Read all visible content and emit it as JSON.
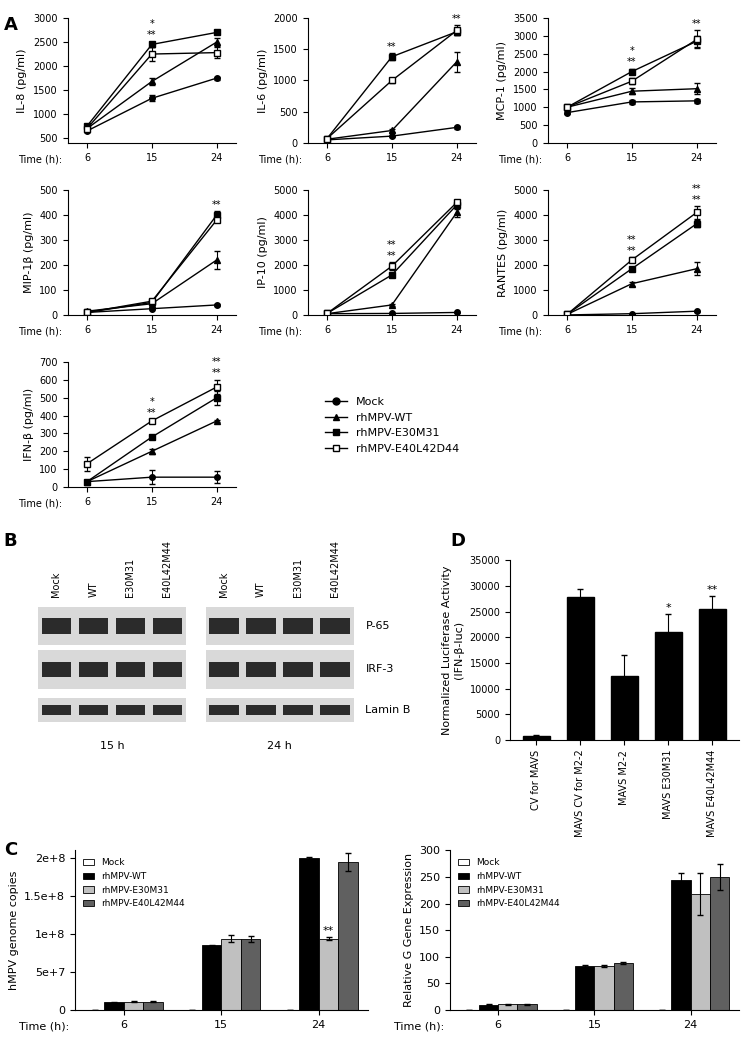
{
  "panel_labels": [
    "A",
    "B",
    "C",
    "D"
  ],
  "blot": {
    "lanes": [
      "Mock",
      "WT",
      "E30M31",
      "E40L42M44"
    ],
    "timepoints": [
      "15 h",
      "24 h"
    ],
    "rows": [
      "P-65",
      "IRF-3",
      "Lamin B"
    ]
  },
  "chart_data": [
    {
      "type": "line",
      "y_label": "IL-8 (pg/ml)",
      "x_label": "Time (h):",
      "categories": [
        "6",
        "15",
        "24"
      ],
      "ylim": [
        400,
        3000
      ],
      "yticks": [
        500,
        1000,
        1500,
        2000,
        2500,
        3000
      ],
      "series": [
        {
          "name": "Mock",
          "color": "#000000",
          "marker": "circle",
          "values": [
            650,
            1330,
            1750
          ],
          "errors": [
            30,
            60,
            30
          ]
        },
        {
          "name": "rhMPV-WT",
          "color": "#000000",
          "marker": "triangle",
          "values": [
            700,
            1680,
            2500
          ],
          "errors": [
            40,
            70,
            90
          ]
        },
        {
          "name": "rhMPV-E30M31",
          "color": "#000000",
          "marker": "square",
          "values": [
            750,
            2450,
            2700
          ],
          "errors": [
            40,
            60,
            40
          ]
        },
        {
          "name": "rhMPV-E40L42D44",
          "color": "#000000",
          "marker": "open_square",
          "values": [
            700,
            2250,
            2280
          ],
          "errors": [
            40,
            140,
            120
          ]
        }
      ],
      "annotations": [
        {
          "x": "15",
          "text": "**"
        },
        {
          "x": "15",
          "text": "*"
        }
      ]
    },
    {
      "type": "line",
      "y_label": "IL-6 (pg/ml)",
      "x_label": "Time (h):",
      "categories": [
        "6",
        "15",
        "24"
      ],
      "ylim": [
        0,
        2000
      ],
      "yticks": [
        0,
        500,
        1000,
        1500,
        2000
      ],
      "series": [
        {
          "name": "Mock",
          "color": "#000000",
          "marker": "circle",
          "values": [
            50,
            110,
            250
          ],
          "errors": [
            10,
            10,
            20
          ]
        },
        {
          "name": "rhMPV-WT",
          "color": "#000000",
          "marker": "triangle",
          "values": [
            60,
            200,
            1300
          ],
          "errors": [
            10,
            20,
            160
          ]
        },
        {
          "name": "rhMPV-E30M31",
          "color": "#000000",
          "marker": "square",
          "values": [
            70,
            1380,
            1780
          ],
          "errors": [
            10,
            60,
            60
          ]
        },
        {
          "name": "rhMPV-E40L42D44",
          "color": "#000000",
          "marker": "open_square",
          "values": [
            70,
            1000,
            1800
          ],
          "errors": [
            10,
            40,
            80
          ]
        }
      ],
      "annotations": [
        {
          "x": "15",
          "text": "**"
        },
        {
          "x": "24",
          "text": "**"
        }
      ]
    },
    {
      "type": "line",
      "y_label": "MCP-1 (pg/ml)",
      "x_label": "Time (h):",
      "categories": [
        "6",
        "15",
        "24"
      ],
      "ylim": [
        0,
        3500
      ],
      "yticks": [
        0,
        500,
        1000,
        1500,
        2000,
        2500,
        3000,
        3500
      ],
      "series": [
        {
          "name": "Mock",
          "color": "#000000",
          "marker": "circle",
          "values": [
            850,
            1150,
            1180
          ],
          "errors": [
            40,
            60,
            60
          ]
        },
        {
          "name": "rhMPV-WT",
          "color": "#000000",
          "marker": "triangle",
          "values": [
            1000,
            1450,
            1520
          ],
          "errors": [
            50,
            80,
            150
          ]
        },
        {
          "name": "rhMPV-E30M31",
          "color": "#000000",
          "marker": "square",
          "values": [
            1000,
            2000,
            2850
          ],
          "errors": [
            50,
            80,
            150
          ]
        },
        {
          "name": "rhMPV-E40L42D44",
          "color": "#000000",
          "marker": "open_square",
          "values": [
            1000,
            1730,
            2900
          ],
          "errors": [
            60,
            80,
            250
          ]
        }
      ],
      "annotations": [
        {
          "x": "15",
          "text": "**"
        },
        {
          "x": "15",
          "text": "*"
        },
        {
          "x": "24",
          "text": "**"
        }
      ]
    },
    {
      "type": "line",
      "y_label": "MIP-1β (pg/ml)",
      "x_label": "Time (h):",
      "categories": [
        "6",
        "15",
        "24"
      ],
      "ylim": [
        0,
        500
      ],
      "yticks": [
        0,
        100,
        200,
        300,
        400,
        500
      ],
      "series": [
        {
          "name": "Mock",
          "color": "#000000",
          "marker": "circle",
          "values": [
            10,
            25,
            40
          ],
          "errors": [
            3,
            3,
            5
          ]
        },
        {
          "name": "rhMPV-WT",
          "color": "#000000",
          "marker": "triangle",
          "values": [
            15,
            45,
            220
          ],
          "errors": [
            5,
            5,
            35
          ]
        },
        {
          "name": "rhMPV-E30M31",
          "color": "#000000",
          "marker": "square",
          "values": [
            10,
            50,
            400
          ],
          "errors": [
            3,
            5,
            15
          ]
        },
        {
          "name": "rhMPV-E40L42D44",
          "color": "#000000",
          "marker": "open_square",
          "values": [
            10,
            55,
            380
          ],
          "errors": [
            3,
            5,
            10
          ]
        }
      ],
      "annotations": [
        {
          "x": "24",
          "text": "**"
        }
      ]
    },
    {
      "type": "line",
      "y_label": "IP-10 (pg/ml)",
      "x_label": "Time (h):",
      "categories": [
        "6",
        "15",
        "24"
      ],
      "ylim": [
        0,
        5000
      ],
      "yticks": [
        0,
        1000,
        2000,
        3000,
        4000,
        5000
      ],
      "series": [
        {
          "name": "Mock",
          "color": "#000000",
          "marker": "circle",
          "values": [
            50,
            60,
            100
          ],
          "errors": [
            10,
            10,
            15
          ]
        },
        {
          "name": "rhMPV-WT",
          "color": "#000000",
          "marker": "triangle",
          "values": [
            50,
            400,
            4100
          ],
          "errors": [
            10,
            40,
            200
          ]
        },
        {
          "name": "rhMPV-E30M31",
          "color": "#000000",
          "marker": "square",
          "values": [
            60,
            1600,
            4400
          ],
          "errors": [
            10,
            80,
            150
          ]
        },
        {
          "name": "rhMPV-E40L42D44",
          "color": "#000000",
          "marker": "open_square",
          "values": [
            60,
            1950,
            4500
          ],
          "errors": [
            10,
            150,
            100
          ]
        }
      ],
      "annotations": [
        {
          "x": "15",
          "text": "**"
        },
        {
          "x": "15",
          "text": "**"
        }
      ]
    },
    {
      "type": "line",
      "y_label": "RANTES (pg/ml)",
      "x_label": "Time (h):",
      "categories": [
        "6",
        "15",
        "24"
      ],
      "ylim": [
        0,
        5000
      ],
      "yticks": [
        0,
        1000,
        2000,
        3000,
        4000,
        5000
      ],
      "series": [
        {
          "name": "Mock",
          "color": "#000000",
          "marker": "circle",
          "values": [
            0,
            50,
            150
          ],
          "errors": [
            5,
            5,
            20
          ]
        },
        {
          "name": "rhMPV-WT",
          "color": "#000000",
          "marker": "triangle",
          "values": [
            20,
            1250,
            1850
          ],
          "errors": [
            5,
            80,
            250
          ]
        },
        {
          "name": "rhMPV-E30M31",
          "color": "#000000",
          "marker": "square",
          "values": [
            20,
            1850,
            3650
          ],
          "errors": [
            5,
            80,
            150
          ]
        },
        {
          "name": "rhMPV-E40L42D44",
          "color": "#000000",
          "marker": "open_square",
          "values": [
            20,
            2200,
            4100
          ],
          "errors": [
            5,
            100,
            250
          ]
        }
      ],
      "annotations": [
        {
          "x": "15",
          "text": "**"
        },
        {
          "x": "15",
          "text": "**"
        },
        {
          "x": "24",
          "text": "**"
        },
        {
          "x": "24",
          "text": "**"
        }
      ]
    },
    {
      "type": "line",
      "y_label": "IFN-β (pg/ml)",
      "x_label": "Time (h):",
      "categories": [
        "6",
        "15",
        "24"
      ],
      "ylim": [
        0,
        700
      ],
      "yticks": [
        0,
        100,
        200,
        300,
        400,
        500,
        600,
        700
      ],
      "series": [
        {
          "name": "Mock",
          "color": "#000000",
          "marker": "circle",
          "values": [
            30,
            55,
            55
          ],
          "errors": [
            10,
            40,
            35
          ]
        },
        {
          "name": "rhMPV-WT",
          "color": "#000000",
          "marker": "triangle",
          "values": [
            30,
            200,
            370
          ],
          "errors": [
            10,
            15,
            5
          ]
        },
        {
          "name": "rhMPV-E30M31",
          "color": "#000000",
          "marker": "square",
          "values": [
            30,
            280,
            500
          ],
          "errors": [
            10,
            10,
            40
          ]
        },
        {
          "name": "rhMPV-E40L42D44",
          "color": "#000000",
          "marker": "open_square",
          "values": [
            130,
            370,
            560
          ],
          "errors": [
            40,
            10,
            40
          ]
        }
      ],
      "annotations": [
        {
          "x": "15",
          "text": "**"
        },
        {
          "x": "15",
          "text": "*"
        },
        {
          "x": "24",
          "text": "**"
        },
        {
          "x": "24",
          "text": "**"
        }
      ]
    },
    {
      "type": "bar",
      "y_label": "hMPV genome copies",
      "x_label": "Time (h):",
      "legend": "upper left",
      "categories": [
        "6",
        "15",
        "24"
      ],
      "ylim": [
        0,
        210000000
      ],
      "yticks": [
        0,
        {
          "value": 50000000,
          "label": "5e+7"
        },
        {
          "value": 100000000,
          "label": "1e+8"
        },
        {
          "value": 150000000,
          "label": "1.5e+8"
        },
        {
          "value": 200000000,
          "label": "2e+8"
        }
      ],
      "series": [
        {
          "name": "Mock",
          "color": "#ffffff",
          "values": [
            0,
            0,
            0
          ],
          "errors": [
            0,
            0,
            0
          ]
        },
        {
          "name": "rhMPV-WT",
          "color": "#000000",
          "values": [
            10000000,
            85000000,
            200000000
          ],
          "errors": [
            500000,
            1000000,
            1500000
          ]
        },
        {
          "name": "rhMPV-E30M31",
          "color": "#c0c0c0",
          "values": [
            11000000,
            94000000,
            94000000
          ],
          "errors": [
            500000,
            5000000,
            1500000
          ]
        },
        {
          "name": "rhMPV-E40L42M44",
          "color": "#606060",
          "values": [
            11000000,
            93000000,
            195000000
          ],
          "errors": [
            500000,
            4000000,
            12000000
          ]
        }
      ],
      "annotations": [
        {
          "x": "24",
          "text": "**",
          "series": "rhMPV-E30M31"
        }
      ]
    },
    {
      "type": "bar",
      "y_label": "Relative G Gene Expression",
      "x_label": "Time (h):",
      "legend": "upper left",
      "categories": [
        "6",
        "15",
        "24"
      ],
      "ylim": [
        0,
        300
      ],
      "yticks": [
        0,
        50,
        100,
        150,
        200,
        250,
        300
      ],
      "series": [
        {
          "name": "Mock",
          "color": "#ffffff",
          "values": [
            0,
            0,
            0
          ],
          "errors": [
            0,
            0,
            0
          ]
        },
        {
          "name": "rhMPV-WT",
          "color": "#000000",
          "values": [
            10,
            82,
            245
          ],
          "errors": [
            1,
            2,
            12
          ]
        },
        {
          "name": "rhMPV-E30M31",
          "color": "#c0c0c0",
          "values": [
            11,
            83,
            218
          ],
          "errors": [
            1,
            2,
            40
          ]
        },
        {
          "name": "rhMPV-E40L42M44",
          "color": "#606060",
          "values": [
            11,
            89,
            250
          ],
          "errors": [
            1,
            2,
            25
          ]
        }
      ]
    },
    {
      "type": "bar",
      "y_label": "Normalized Luciferase Activity\n(IFN-β-luc)",
      "color": "#000000",
      "categories": [
        "CV for MAVS",
        "MAVS CV for M2-2",
        "MAVS M2-2",
        "MAVS E30M31",
        "MAVS E40L42M44"
      ],
      "values": [
        800,
        27800,
        12400,
        21000,
        25500
      ],
      "errors": [
        100,
        1500,
        4200,
        3500,
        2500
      ],
      "ylim": [
        0,
        35000
      ],
      "yticks": [
        0,
        5000,
        10000,
        15000,
        20000,
        25000,
        30000,
        35000
      ],
      "annotations": [
        {
          "x": "MAVS E30M31",
          "text": "*"
        },
        {
          "x": "MAVS E40L42M44",
          "text": "**"
        }
      ]
    }
  ]
}
